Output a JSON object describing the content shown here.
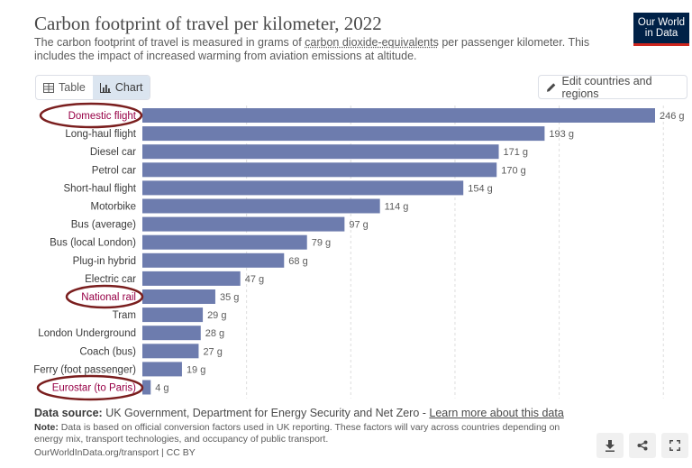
{
  "header": {
    "title": "Carbon footprint of travel per kilometer, 2022",
    "subtitle_pre": "The carbon footprint of travel is measured in grams of ",
    "subtitle_link": "carbon dioxide-equivalents",
    "subtitle_post": " per passenger kilometer. This includes the impact of increased warming from aviation emissions at altitude.",
    "logo_line1": "Our World",
    "logo_line2": "in Data"
  },
  "controls": {
    "tab_table": "Table",
    "tab_chart": "Chart",
    "active_tab": "Chart",
    "edit_button": "Edit countries and regions"
  },
  "chart_data": {
    "type": "bar",
    "orientation": "horizontal",
    "title": "Carbon footprint of travel per kilometer, 2022",
    "unit": "g",
    "categories": [
      "Domestic flight",
      "Long-haul flight",
      "Diesel car",
      "Petrol car",
      "Short-haul flight",
      "Motorbike",
      "Bus (average)",
      "Bus (local London)",
      "Plug-in hybrid",
      "Electric car",
      "National rail",
      "Tram",
      "London Underground",
      "Coach (bus)",
      "Ferry (foot passenger)",
      "Eurostar (to Paris)"
    ],
    "values": [
      246,
      193,
      171,
      170,
      154,
      114,
      97,
      79,
      68,
      47,
      35,
      29,
      28,
      27,
      19,
      4
    ],
    "value_labels": [
      "246 g",
      "193 g",
      "171 g",
      "170 g",
      "154 g",
      "114 g",
      "97 g",
      "79 g",
      "68 g",
      "47 g",
      "35 g",
      "29 g",
      "28 g",
      "27 g",
      "19 g",
      "4 g"
    ],
    "highlighted": [
      "Domestic flight",
      "National rail",
      "Eurostar (to Paris)"
    ],
    "xlim": [
      0,
      246
    ],
    "grid": true,
    "bar_color": "#6d7cae",
    "label_color_default": "#3a3a3a",
    "label_color_highlight": "#970046"
  },
  "footer": {
    "source_label": "Data source:",
    "source_text": " UK Government, Department for Energy Security and Net Zero - ",
    "source_link": "Learn more about this data",
    "note_label": "Note:",
    "note_text": " Data is based on official conversion factors used in UK reporting. These factors will vary across countries depending on energy mix, transport technologies, and occupancy of public transport.",
    "credit": "OurWorldInData.org/transport | CC BY"
  },
  "actions": {
    "download_icon": "download-icon",
    "share_icon": "share-icon",
    "fullscreen_icon": "fullscreen-icon"
  }
}
